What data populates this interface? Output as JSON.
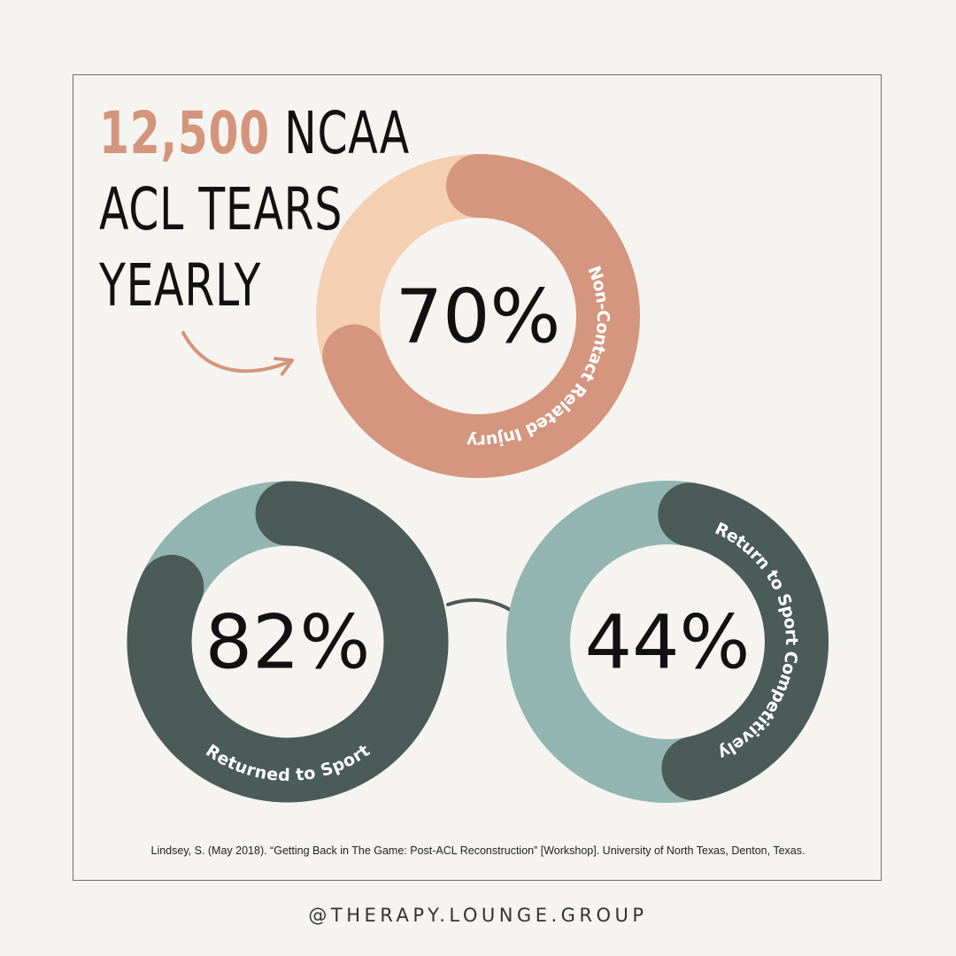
{
  "headline": {
    "number": "12,500",
    "rest_line1": "NCAA",
    "line2": "ACL TEARS",
    "line3": "YEARLY"
  },
  "chart_data": [
    {
      "type": "pie",
      "style": "donut",
      "center_label": "70%",
      "values": [
        70,
        30
      ],
      "labels": [
        "Non-Contact Related Injury",
        ""
      ],
      "colors": [
        "#d4967e",
        "#f5cfb2"
      ]
    },
    {
      "type": "pie",
      "style": "donut",
      "center_label": "82%",
      "values": [
        82,
        18
      ],
      "labels": [
        "Returned to Sport",
        ""
      ],
      "colors": [
        "#4b5b57",
        "#93b5b1"
      ]
    },
    {
      "type": "pie",
      "style": "donut",
      "center_label": "44%",
      "values": [
        44,
        56
      ],
      "labels": [
        "Return to Sport Competitively",
        ""
      ],
      "colors": [
        "#4b5b57",
        "#93b5b1"
      ]
    }
  ],
  "citation": "Lindsey, S. (May 2018). “Getting Back in The Game: Post-ACL Reconstruction” [Workshop]. University of North Texas, Denton, Texas.",
  "handle": "@THERAPY.LOUNGE.GROUP"
}
